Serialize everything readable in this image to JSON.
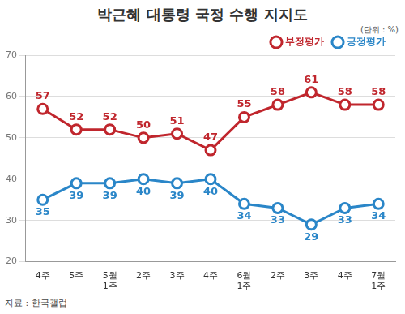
{
  "chart_data": {
    "type": "line",
    "title": "박근혜 대통령 국정 수행 지지도",
    "subtitle": "(단위 : %)",
    "source": "자료 : 한국갤럽",
    "categories": [
      "4주",
      "5주",
      "5월 1주",
      "2주",
      "3주",
      "4주",
      "6월 1주",
      "2주",
      "3주",
      "4주",
      "7월 1주"
    ],
    "series": [
      {
        "name": "부정평가",
        "color": "#c0262d",
        "values": [
          57,
          52,
          52,
          50,
          51,
          47,
          55,
          58,
          61,
          58,
          58
        ]
      },
      {
        "name": "긍정평가",
        "color": "#2a86c8",
        "values": [
          35,
          39,
          39,
          40,
          39,
          40,
          34,
          33,
          29,
          33,
          34
        ]
      }
    ],
    "ylim": [
      20,
      70
    ],
    "yticks": [
      20,
      30,
      40,
      50,
      60,
      70
    ],
    "grid": true,
    "legend": "top-right",
    "data_labels": true,
    "marker": "circle"
  }
}
